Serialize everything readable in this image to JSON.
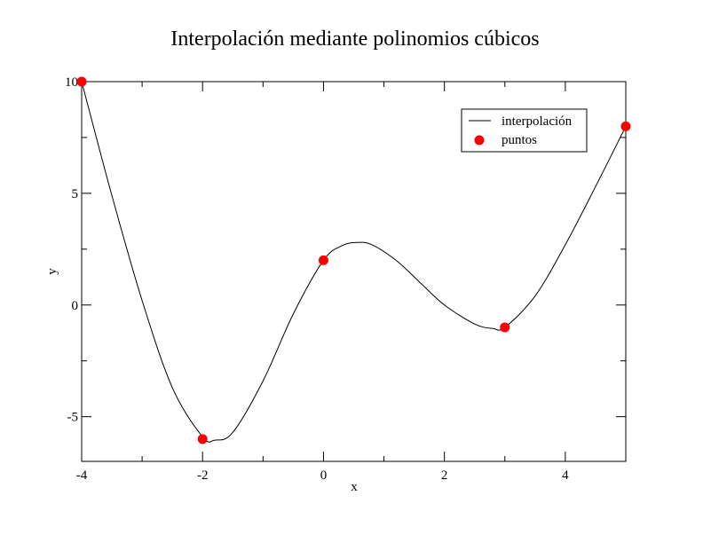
{
  "chart_data": {
    "type": "line",
    "title": "Interpolación mediante polinomios cúbicos",
    "xlabel": "x",
    "ylabel": "y",
    "xlim": [
      -4,
      5
    ],
    "ylim": [
      -7,
      10
    ],
    "xticks": [
      -4,
      -2,
      0,
      2,
      4
    ],
    "yticks": [
      -5,
      0,
      5,
      10
    ],
    "legend_position": "top-right",
    "series": [
      {
        "name": "interpolación",
        "style": "line",
        "color": "#000000",
        "x": [
          -4,
          -3.5,
          -3,
          -2.5,
          -2,
          -1.8,
          -1.5,
          -1,
          -0.5,
          0,
          0.3,
          0.55,
          0.8,
          1.2,
          1.6,
          2,
          2.5,
          2.8,
          3,
          3.5,
          4,
          4.5,
          5
        ],
        "y": [
          10,
          4.9,
          0.2,
          -3.7,
          -5.9,
          -6.05,
          -5.7,
          -3.4,
          -0.4,
          2,
          2.65,
          2.8,
          2.7,
          2.0,
          1.0,
          0.0,
          -0.85,
          -1.05,
          -1.0,
          0.4,
          2.7,
          5.3,
          8
        ]
      },
      {
        "name": "puntos",
        "style": "scatter",
        "color": "#ff0000",
        "x": [
          -4,
          -2,
          0,
          3,
          5
        ],
        "y": [
          10,
          -6,
          2,
          -1,
          8
        ]
      }
    ]
  }
}
